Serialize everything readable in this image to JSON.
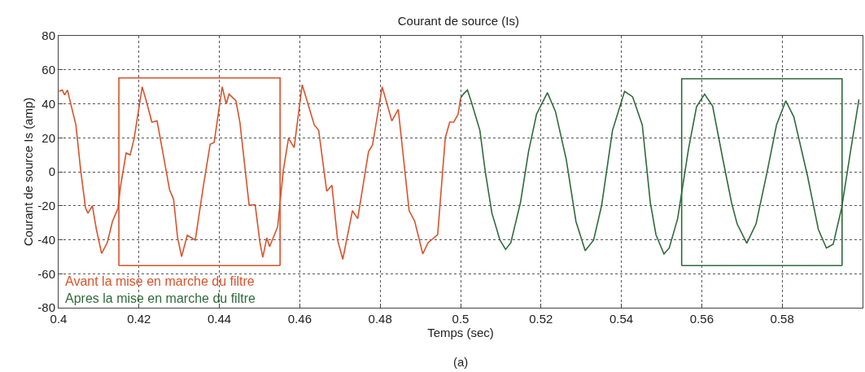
{
  "chart_data": {
    "type": "line",
    "title": "Courant de source (Is)",
    "xlabel": "Temps (sec)",
    "ylabel": "Courant de source Is (amp)",
    "annotations": [
      "(a)"
    ],
    "xlim": [
      0.4,
      0.6
    ],
    "xticks": [
      0.4,
      0.42,
      0.44,
      0.46,
      0.48,
      0.5,
      0.52,
      0.54,
      0.56,
      0.58
    ],
    "ylim": [
      -80,
      80
    ],
    "yticks": [
      -80,
      -60,
      -40,
      -20,
      0,
      20,
      40,
      60,
      80
    ],
    "grid": true,
    "legend": false,
    "line_style": "solid",
    "marker": "none",
    "series": [
      {
        "name": "Avant la mise en marche du filtre",
        "color": "#d9532b",
        "x": [
          0.4001,
          0.4009,
          0.4015,
          0.4022,
          0.403,
          0.4043,
          0.4055,
          0.4067,
          0.4073,
          0.4084,
          0.4094,
          0.4107,
          0.4121,
          0.4134,
          0.4148,
          0.4154,
          0.4168,
          0.4178,
          0.4188,
          0.4208,
          0.4218,
          0.4232,
          0.4245,
          0.4259,
          0.4276,
          0.4286,
          0.4296,
          0.4306,
          0.432,
          0.434,
          0.436,
          0.4377,
          0.4387,
          0.4407,
          0.4417,
          0.4424,
          0.4441,
          0.4451,
          0.4474,
          0.4489,
          0.4501,
          0.4508,
          0.4518,
          0.4525,
          0.4545,
          0.4559,
          0.4572,
          0.4586,
          0.4606,
          0.462,
          0.4636,
          0.4647,
          0.4667,
          0.468,
          0.4694,
          0.4707,
          0.4731,
          0.4744,
          0.4771,
          0.4781,
          0.4805,
          0.4829,
          0.4845,
          0.4872,
          0.4886,
          0.4906,
          0.4919,
          0.4943,
          0.4962,
          0.4973,
          0.4983,
          0.4994,
          0.5
        ],
        "values": [
          47.3,
          48.1,
          45.2,
          48.1,
          40.2,
          27.6,
          0.8,
          -21.3,
          -24.4,
          -20.0,
          -33.9,
          -48.1,
          -41.8,
          -29.2,
          -21.3,
          -8.7,
          11.0,
          9.9,
          19.7,
          50.0,
          41.8,
          29.2,
          29.9,
          11.8,
          -10.6,
          -16.2,
          -38.6,
          -50.0,
          -37.4,
          -40.2,
          -8.7,
          16.2,
          17.3,
          50.0,
          39.9,
          45.7,
          41.8,
          29.2,
          -19.7,
          -19.4,
          -41.8,
          -50.4,
          -38.9,
          -44.1,
          -32.3,
          0.8,
          19.7,
          14.2,
          51.2,
          40.2,
          27.6,
          24.4,
          -11.5,
          -7.9,
          -40.2,
          -51.5,
          -22.9,
          -27.6,
          11.8,
          15.8,
          50.0,
          29.9,
          36.7,
          -22.9,
          -29.2,
          -48.4,
          -41.8,
          -37.0,
          20.0,
          29.2,
          29.2,
          33.9,
          43.3
        ]
      },
      {
        "name": "Apres la mise en marche du filtre",
        "color": "#2f6b3c",
        "x": [
          0.5,
          0.5007,
          0.5017,
          0.5027,
          0.5048,
          0.5061,
          0.5078,
          0.5098,
          0.5112,
          0.5125,
          0.5149,
          0.5169,
          0.5189,
          0.5216,
          0.5236,
          0.5263,
          0.5287,
          0.531,
          0.5331,
          0.5351,
          0.5378,
          0.5408,
          0.5428,
          0.5452,
          0.5472,
          0.5486,
          0.5506,
          0.5519,
          0.554,
          0.5567,
          0.5587,
          0.5607,
          0.5627,
          0.5654,
          0.5674,
          0.5688,
          0.5712,
          0.5735,
          0.5762,
          0.5786,
          0.5809,
          0.5829,
          0.5863,
          0.589,
          0.591,
          0.5927,
          0.5948,
          0.5971,
          0.5991
        ],
        "values": [
          43.3,
          45.7,
          48.1,
          41.0,
          24.4,
          0.8,
          -24.4,
          -40.2,
          -45.7,
          -41.8,
          -18.1,
          11.8,
          33.9,
          46.5,
          35.5,
          7.1,
          -29.2,
          -46.5,
          -40.2,
          -19.7,
          24.4,
          47.3,
          44.1,
          27.6,
          -18.1,
          -37.0,
          -48.4,
          -44.9,
          -27.6,
          13.4,
          38.3,
          45.7,
          38.6,
          5.5,
          -18.1,
          -30.7,
          -42.1,
          -30.7,
          -0.8,
          27.6,
          41.8,
          32.3,
          -2.4,
          -33.9,
          -44.9,
          -42.6,
          -21.3,
          13.4,
          42.6
        ]
      },
      {
        "color": "#d9532b",
        "x": [
          0.415,
          0.415,
          0.4551,
          0.4551
        ],
        "values": [
          -55.2,
          55.2,
          55.2,
          -55.2
        ]
      },
      {
        "color": "#d9532b",
        "x": [
          0.415,
          0.4551
        ],
        "values": [
          -55.2,
          -55.2
        ]
      },
      {
        "color": "#2f6b3c",
        "x": [
          0.555,
          0.555,
          0.5949,
          0.5949
        ],
        "values": [
          -55.2,
          54.7,
          54.7,
          -55.2
        ]
      },
      {
        "color": "#2f6b3c",
        "x": [
          0.555,
          0.5949
        ],
        "values": [
          -55.2,
          -55.2
        ]
      }
    ]
  }
}
